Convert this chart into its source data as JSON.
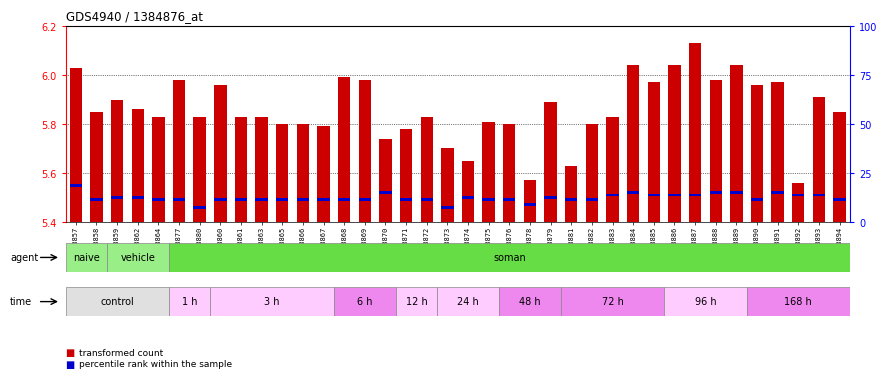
{
  "title": "GDS4940 / 1384876_at",
  "samples": [
    "GSM338857",
    "GSM338858",
    "GSM338859",
    "GSM338862",
    "GSM338864",
    "GSM338877",
    "GSM338880",
    "GSM338860",
    "GSM338861",
    "GSM338863",
    "GSM338865",
    "GSM338866",
    "GSM338867",
    "GSM338868",
    "GSM338869",
    "GSM338870",
    "GSM338871",
    "GSM338872",
    "GSM338873",
    "GSM338874",
    "GSM338875",
    "GSM338876",
    "GSM338878",
    "GSM338879",
    "GSM338881",
    "GSM338882",
    "GSM338883",
    "GSM338884",
    "GSM338885",
    "GSM338886",
    "GSM338887",
    "GSM338888",
    "GSM338889",
    "GSM338890",
    "GSM338891",
    "GSM338892",
    "GSM338893",
    "GSM338894"
  ],
  "red_values": [
    6.03,
    5.85,
    5.9,
    5.86,
    5.83,
    5.98,
    5.83,
    5.96,
    5.83,
    5.83,
    5.8,
    5.8,
    5.79,
    5.99,
    5.98,
    5.74,
    5.78,
    5.83,
    5.7,
    5.65,
    5.81,
    5.8,
    5.57,
    5.89,
    5.63,
    5.8,
    5.83,
    6.04,
    5.97,
    6.04,
    6.13,
    5.98,
    6.04,
    5.96,
    5.97,
    5.56,
    5.91,
    5.85
  ],
  "blue_values": [
    5.55,
    5.49,
    5.5,
    5.5,
    5.49,
    5.49,
    5.46,
    5.49,
    5.49,
    5.49,
    5.49,
    5.49,
    5.49,
    5.49,
    5.49,
    5.52,
    5.49,
    5.49,
    5.46,
    5.5,
    5.49,
    5.49,
    5.47,
    5.5,
    5.49,
    5.49,
    5.51,
    5.52,
    5.51,
    5.51,
    5.51,
    5.52,
    5.52,
    5.49,
    5.52,
    5.51,
    5.51,
    5.49
  ],
  "ylim_left": [
    5.4,
    6.2
  ],
  "ylim_right": [
    0,
    100
  ],
  "yticks_left": [
    5.4,
    5.6,
    5.8,
    6.0,
    6.2
  ],
  "yticks_right": [
    0,
    25,
    50,
    75,
    100
  ],
  "bar_color_red": "#cc0000",
  "bar_color_blue": "#0000cc",
  "bar_width": 0.6,
  "agent_regions": [
    {
      "label": "naive",
      "start": 0,
      "end": 2,
      "color": "#99ee88"
    },
    {
      "label": "vehicle",
      "start": 2,
      "end": 5,
      "color": "#99ee88"
    },
    {
      "label": "soman",
      "start": 5,
      "end": 38,
      "color": "#66dd44"
    }
  ],
  "time_regions": [
    {
      "label": "control",
      "start": 0,
      "end": 5,
      "color": "#e0e0e0"
    },
    {
      "label": "1 h",
      "start": 5,
      "end": 7,
      "color": "#ffccff"
    },
    {
      "label": "3 h",
      "start": 7,
      "end": 13,
      "color": "#ffccff"
    },
    {
      "label": "6 h",
      "start": 13,
      "end": 16,
      "color": "#ee88ee"
    },
    {
      "label": "12 h",
      "start": 16,
      "end": 18,
      "color": "#ffccff"
    },
    {
      "label": "24 h",
      "start": 18,
      "end": 21,
      "color": "#ffccff"
    },
    {
      "label": "48 h",
      "start": 21,
      "end": 24,
      "color": "#ee88ee"
    },
    {
      "label": "72 h",
      "start": 24,
      "end": 29,
      "color": "#ee88ee"
    },
    {
      "label": "96 h",
      "start": 29,
      "end": 33,
      "color": "#ffccff"
    },
    {
      "label": "168 h",
      "start": 33,
      "end": 38,
      "color": "#ee88ee"
    }
  ],
  "background_color": "#ffffff"
}
